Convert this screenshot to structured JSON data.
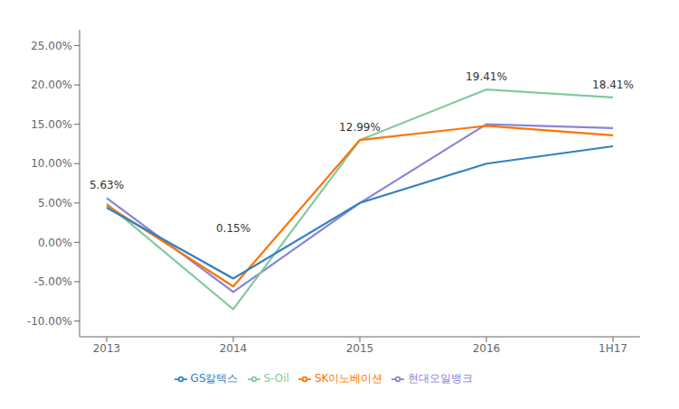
{
  "chart_data": {
    "type": "line",
    "categories": [
      "2013",
      "2014",
      "2015",
      "2016",
      "1H17"
    ],
    "series": [
      {
        "name": "현대오일뱅크",
        "values": [
          0.0563,
          -0.063,
          0.05,
          0.15,
          0.145
        ]
      },
      {
        "name": "S-Oil",
        "values": [
          0.049,
          -0.085,
          0.13,
          0.1941,
          0.1841
        ]
      },
      {
        "name": "SK이노베이션",
        "values": [
          0.047,
          -0.056,
          0.1299,
          0.148,
          0.136
        ]
      },
      {
        "name": "GS칼텍스",
        "values": [
          0.044,
          -0.046,
          0.05,
          0.1,
          0.122
        ]
      }
    ],
    "ylim": [
      -0.12,
      0.27
    ],
    "yticks": [
      {
        "value": -0.1,
        "label": "-10.00%"
      },
      {
        "value": -0.05,
        "label": "-5.00%"
      },
      {
        "value": 0.0,
        "label": "0.00%"
      },
      {
        "value": 0.05,
        "label": "5.00%"
      },
      {
        "value": 0.1,
        "label": "10.00%"
      },
      {
        "value": 0.15,
        "label": "15.00%"
      },
      {
        "value": 0.2,
        "label": "20.00%"
      },
      {
        "value": 0.25,
        "label": "25.00%"
      }
    ],
    "annotations": [
      {
        "text": "5.63%",
        "x": "2013",
        "y": 0.0563
      },
      {
        "text": "0.15%",
        "x": "2014",
        "y": 0.0015
      },
      {
        "text": "12.99%",
        "x": "2015",
        "y": 0.1299
      },
      {
        "text": "19.41%",
        "x": "2016",
        "y": 0.1941
      },
      {
        "text": "18.41%",
        "x": "1H17",
        "y": 0.1841
      }
    ],
    "grid": false,
    "legend": "bottom"
  }
}
